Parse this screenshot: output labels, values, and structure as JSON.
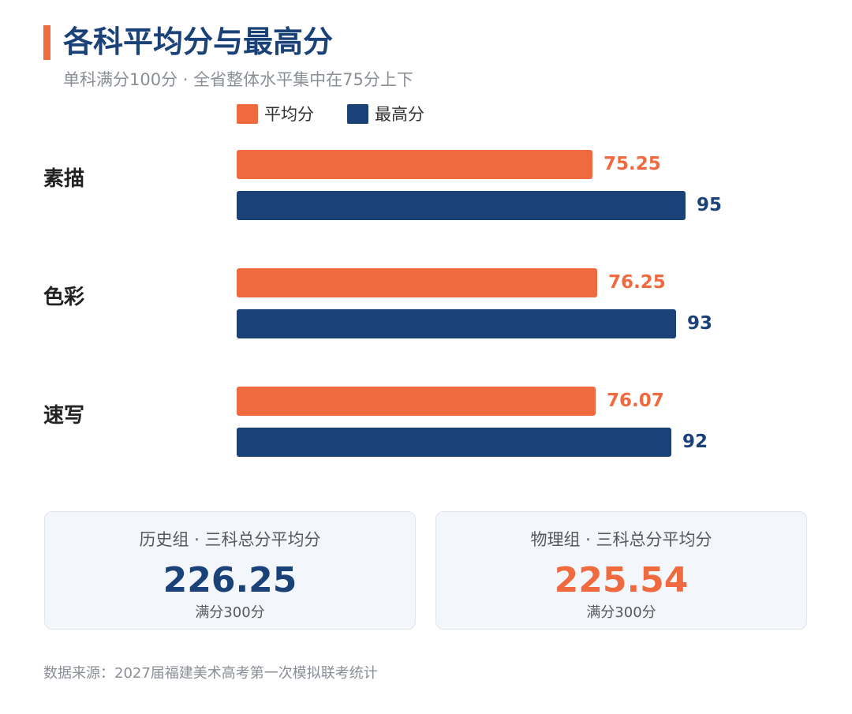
{
  "header": {
    "title": "各科平均分与最高分",
    "subtitle": "单科满分100分 · 全省整体水平集中在75分上下"
  },
  "legend": [
    {
      "label": "平均分",
      "color": "#F06A40"
    },
    {
      "label": "最高分",
      "color": "#1A4278"
    }
  ],
  "chart_data": {
    "type": "bar",
    "orientation": "horizontal",
    "categories": [
      "素描",
      "色彩",
      "速写"
    ],
    "series": [
      {
        "name": "平均分",
        "values": [
          75.25,
          76.25,
          76.07
        ],
        "labels": [
          "75.25",
          "76.25",
          "76.07"
        ],
        "color": "#F06A40"
      },
      {
        "name": "最高分",
        "values": [
          95,
          93,
          92
        ],
        "labels": [
          "95",
          "93",
          "92"
        ],
        "color": "#1A4278"
      }
    ],
    "xlim": [
      0,
      100
    ],
    "grid": false,
    "legend_position": "top-left"
  },
  "cards": [
    {
      "title": "历史组 · 三科总分平均分",
      "value": "226.25",
      "note": "满分300分",
      "color": "#1A4278"
    },
    {
      "title": "物理组 · 三科总分平均分",
      "value": "225.54",
      "note": "满分300分",
      "color": "#F06A40"
    }
  ],
  "footer": {
    "source": "数据来源：2027届福建美术高考第一次模拟联考统计"
  }
}
